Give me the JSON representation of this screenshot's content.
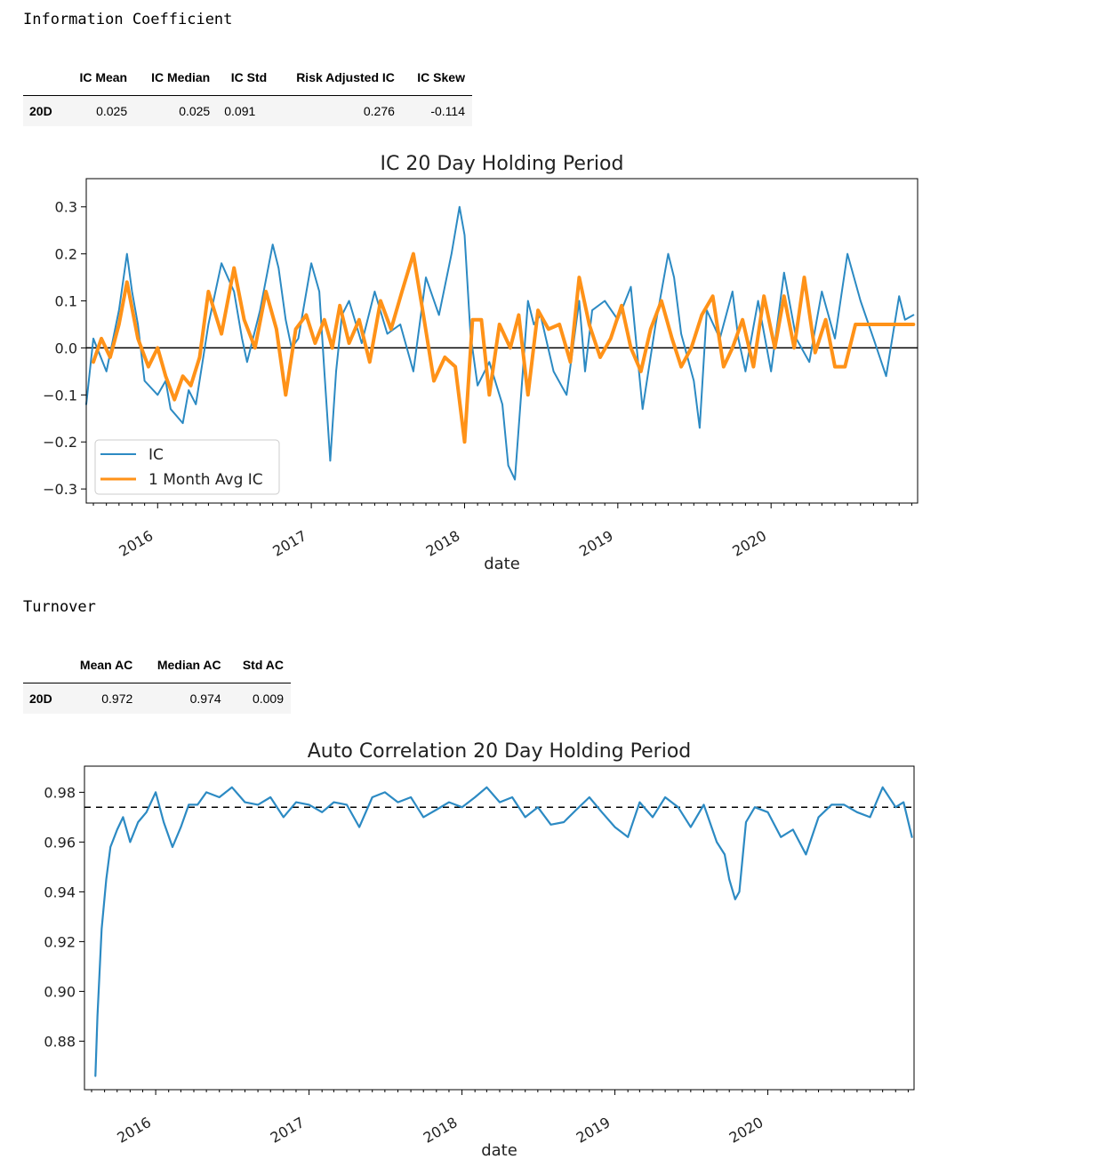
{
  "ic_section": {
    "heading": "Information Coefficient",
    "table": {
      "headers": [
        "",
        "IC Mean",
        "IC Median",
        "IC Std",
        "Risk Adjusted IC",
        "IC Skew"
      ],
      "rows": [
        [
          "20D",
          "0.025",
          "0.025",
          "0.091",
          "0.276",
          "-0.114"
        ]
      ]
    }
  },
  "turnover_section": {
    "heading": "Turnover",
    "table": {
      "headers": [
        "",
        "Mean AC",
        "Median AC",
        "Std AC"
      ],
      "rows": [
        [
          "20D",
          "0.972",
          "0.974",
          "0.009"
        ]
      ]
    }
  },
  "chart_data": [
    {
      "type": "line",
      "title": "IC 20 Day Holding Period",
      "xlabel": "date",
      "ylabel": "",
      "xlim": [
        "2015-07-15",
        "2020-12-15"
      ],
      "ylim": [
        -0.33,
        0.36
      ],
      "x_ticks": [
        "2016",
        "2017",
        "2018",
        "2019",
        "2020"
      ],
      "y_ticks": [
        0.3,
        0.2,
        0.1,
        0.0,
        -0.1,
        -0.2,
        -0.3
      ],
      "y_tick_labels": [
        "0.3",
        "0.2",
        "0.1",
        "0.0",
        "−0.1",
        "−0.2",
        "−0.3"
      ],
      "legend_position": "lower-left",
      "hline": 0.0,
      "colors": {
        "IC": "#2c8ac3",
        "1 Month Avg IC": "#ff9218"
      },
      "series": [
        {
          "name": "IC",
          "x": [
            "2015-07-15",
            "2015-08-01",
            "2015-09-01",
            "2015-10-01",
            "2015-10-20",
            "2015-11-01",
            "2015-11-15",
            "2015-12-01",
            "2016-01-01",
            "2016-01-20",
            "2016-02-01",
            "2016-03-01",
            "2016-03-15",
            "2016-04-01",
            "2016-05-01",
            "2016-06-01",
            "2016-07-01",
            "2016-07-20",
            "2016-08-01",
            "2016-09-01",
            "2016-10-01",
            "2016-10-15",
            "2016-11-01",
            "2016-11-15",
            "2016-12-01",
            "2017-01-01",
            "2017-01-20",
            "2017-02-01",
            "2017-02-15",
            "2017-03-01",
            "2017-03-15",
            "2017-04-01",
            "2017-05-01",
            "2017-06-01",
            "2017-07-01",
            "2017-08-01",
            "2017-09-01",
            "2017-10-01",
            "2017-11-01",
            "2017-12-01",
            "2017-12-20",
            "2018-01-01",
            "2018-01-15",
            "2018-02-01",
            "2018-03-01",
            "2018-04-01",
            "2018-04-15",
            "2018-05-01",
            "2018-06-01",
            "2018-06-15",
            "2018-07-01",
            "2018-08-01",
            "2018-09-01",
            "2018-10-01",
            "2018-10-15",
            "2018-11-01",
            "2018-12-01",
            "2019-01-01",
            "2019-02-01",
            "2019-03-01",
            "2019-04-01",
            "2019-05-01",
            "2019-05-15",
            "2019-06-01",
            "2019-07-01",
            "2019-07-15",
            "2019-08-01",
            "2019-09-01",
            "2019-10-01",
            "2019-10-15",
            "2019-11-01",
            "2019-12-01",
            "2020-01-01",
            "2020-02-01",
            "2020-03-01",
            "2020-04-01",
            "2020-05-01",
            "2020-06-01",
            "2020-07-01",
            "2020-08-01",
            "2020-09-01",
            "2020-10-01",
            "2020-11-01",
            "2020-11-15",
            "2020-12-05"
          ],
          "values": [
            -0.12,
            0.02,
            -0.05,
            0.08,
            0.2,
            0.12,
            0.05,
            -0.07,
            -0.1,
            -0.07,
            -0.13,
            -0.16,
            -0.09,
            -0.12,
            0.05,
            0.18,
            0.12,
            0.02,
            -0.03,
            0.08,
            0.22,
            0.17,
            0.06,
            0.0,
            0.02,
            0.18,
            0.12,
            -0.05,
            -0.24,
            -0.05,
            0.07,
            0.1,
            0.01,
            0.12,
            0.03,
            0.05,
            -0.05,
            0.15,
            0.07,
            0.2,
            0.3,
            0.24,
            0.03,
            -0.08,
            -0.03,
            -0.12,
            -0.25,
            -0.28,
            0.1,
            0.05,
            0.07,
            -0.05,
            -0.1,
            0.1,
            -0.05,
            0.08,
            0.1,
            0.06,
            0.13,
            -0.13,
            0.05,
            0.2,
            0.15,
            0.03,
            -0.07,
            -0.17,
            0.08,
            0.02,
            0.12,
            0.02,
            -0.05,
            0.1,
            -0.05,
            0.16,
            0.02,
            -0.03,
            0.12,
            0.02,
            0.2,
            0.1,
            0.02,
            -0.06,
            0.11,
            0.06,
            0.07
          ]
        },
        {
          "name": "1 Month Avg IC",
          "x": [
            "2015-08-01",
            "2015-08-20",
            "2015-09-10",
            "2015-10-01",
            "2015-10-20",
            "2015-11-15",
            "2015-12-10",
            "2016-01-01",
            "2016-01-20",
            "2016-02-10",
            "2016-03-01",
            "2016-03-20",
            "2016-04-10",
            "2016-05-01",
            "2016-06-01",
            "2016-07-01",
            "2016-07-25",
            "2016-08-20",
            "2016-09-15",
            "2016-10-10",
            "2016-11-01",
            "2016-11-25",
            "2016-12-20",
            "2017-01-10",
            "2017-02-01",
            "2017-02-20",
            "2017-03-10",
            "2017-04-01",
            "2017-04-25",
            "2017-05-20",
            "2017-06-15",
            "2017-07-10",
            "2017-08-05",
            "2017-09-01",
            "2017-09-25",
            "2017-10-20",
            "2017-11-15",
            "2017-12-10",
            "2018-01-01",
            "2018-01-20",
            "2018-02-10",
            "2018-03-01",
            "2018-03-25",
            "2018-04-20",
            "2018-05-10",
            "2018-06-01",
            "2018-06-25",
            "2018-07-20",
            "2018-08-15",
            "2018-09-10",
            "2018-10-01",
            "2018-10-25",
            "2018-11-20",
            "2018-12-15",
            "2019-01-10",
            "2019-02-01",
            "2019-02-25",
            "2019-03-20",
            "2019-04-15",
            "2019-05-10",
            "2019-06-01",
            "2019-06-25",
            "2019-07-20",
            "2019-08-15",
            "2019-09-10",
            "2019-10-01",
            "2019-10-25",
            "2019-11-20",
            "2019-12-15",
            "2020-01-10",
            "2020-02-01",
            "2020-02-25",
            "2020-03-20",
            "2020-04-15",
            "2020-05-10",
            "2020-06-01",
            "2020-06-25",
            "2020-07-20",
            "2020-08-15",
            "2020-09-10",
            "2020-10-01",
            "2020-10-25",
            "2020-11-20",
            "2020-12-05"
          ],
          "values": [
            -0.03,
            0.02,
            -0.02,
            0.05,
            0.14,
            0.02,
            -0.04,
            0.0,
            -0.06,
            -0.11,
            -0.06,
            -0.08,
            -0.02,
            0.12,
            0.03,
            0.17,
            0.06,
            0.0,
            0.12,
            0.04,
            -0.1,
            0.04,
            0.07,
            0.01,
            0.06,
            0.0,
            0.09,
            0.01,
            0.06,
            -0.03,
            0.1,
            0.04,
            0.12,
            0.2,
            0.07,
            -0.07,
            -0.02,
            -0.04,
            -0.2,
            0.06,
            0.06,
            -0.1,
            0.05,
            0.0,
            0.07,
            -0.1,
            0.08,
            0.04,
            0.05,
            -0.03,
            0.15,
            0.05,
            -0.02,
            0.02,
            0.09,
            0.0,
            -0.05,
            0.04,
            0.1,
            0.02,
            -0.04,
            0.0,
            0.07,
            0.11,
            -0.04,
            0.0,
            0.06,
            -0.04,
            0.11,
            0.0,
            0.11,
            0.0,
            0.15,
            -0.01,
            0.06,
            -0.04,
            -0.04,
            0.05,
            0.05,
            0.05,
            0.05,
            0.05,
            0.05,
            0.05
          ]
        }
      ]
    },
    {
      "type": "line",
      "title": "Auto Correlation 20 Day Holding Period",
      "xlabel": "date",
      "ylabel": "",
      "xlim": [
        "2015-07-15",
        "2020-12-15"
      ],
      "ylim": [
        0.8605,
        0.9905
      ],
      "x_ticks": [
        "2016",
        "2017",
        "2018",
        "2019",
        "2020"
      ],
      "y_ticks": [
        0.98,
        0.96,
        0.94,
        0.92,
        0.9,
        0.88
      ],
      "y_tick_labels": [
        "0.98",
        "0.96",
        "0.94",
        "0.92",
        "0.90",
        "0.88"
      ],
      "hline": 0.974,
      "colors": {
        "autocorrelation": "#2c8ac3",
        "median": "#000000"
      },
      "series": [
        {
          "name": "",
          "x": [
            "2015-08-10",
            "2015-08-15",
            "2015-08-25",
            "2015-09-05",
            "2015-09-15",
            "2015-10-01",
            "2015-10-15",
            "2015-11-01",
            "2015-11-20",
            "2015-12-10",
            "2016-01-01",
            "2016-01-20",
            "2016-02-10",
            "2016-03-01",
            "2016-03-20",
            "2016-04-10",
            "2016-05-01",
            "2016-06-01",
            "2016-07-01",
            "2016-08-01",
            "2016-09-01",
            "2016-10-01",
            "2016-11-01",
            "2016-12-01",
            "2017-01-01",
            "2017-02-01",
            "2017-03-01",
            "2017-04-01",
            "2017-05-01",
            "2017-06-01",
            "2017-07-01",
            "2017-08-01",
            "2017-09-01",
            "2017-10-01",
            "2017-11-01",
            "2017-12-01",
            "2018-01-01",
            "2018-02-01",
            "2018-03-01",
            "2018-04-01",
            "2018-05-01",
            "2018-06-01",
            "2018-07-01",
            "2018-08-01",
            "2018-09-01",
            "2018-10-01",
            "2018-11-01",
            "2018-12-01",
            "2019-01-01",
            "2019-02-01",
            "2019-03-01",
            "2019-04-01",
            "2019-05-01",
            "2019-06-01",
            "2019-07-01",
            "2019-08-01",
            "2019-09-01",
            "2019-09-20",
            "2019-10-01",
            "2019-10-15",
            "2019-10-25",
            "2019-11-10",
            "2019-12-01",
            "2020-01-01",
            "2020-02-01",
            "2020-03-01",
            "2020-04-01",
            "2020-05-01",
            "2020-06-01",
            "2020-07-01",
            "2020-08-01",
            "2020-09-01",
            "2020-10-01",
            "2020-11-01",
            "2020-11-20",
            "2020-12-10"
          ],
          "values": [
            0.866,
            0.89,
            0.925,
            0.945,
            0.958,
            0.965,
            0.97,
            0.96,
            0.968,
            0.972,
            0.98,
            0.968,
            0.958,
            0.966,
            0.975,
            0.975,
            0.98,
            0.978,
            0.982,
            0.976,
            0.975,
            0.978,
            0.97,
            0.976,
            0.975,
            0.972,
            0.976,
            0.975,
            0.966,
            0.978,
            0.98,
            0.976,
            0.978,
            0.97,
            0.973,
            0.976,
            0.974,
            0.978,
            0.982,
            0.976,
            0.978,
            0.97,
            0.974,
            0.967,
            0.968,
            0.973,
            0.978,
            0.972,
            0.966,
            0.962,
            0.976,
            0.97,
            0.978,
            0.974,
            0.966,
            0.975,
            0.96,
            0.955,
            0.945,
            0.937,
            0.94,
            0.968,
            0.974,
            0.972,
            0.962,
            0.965,
            0.955,
            0.97,
            0.975,
            0.975,
            0.972,
            0.97,
            0.982,
            0.974,
            0.976,
            0.962
          ]
        }
      ]
    }
  ]
}
